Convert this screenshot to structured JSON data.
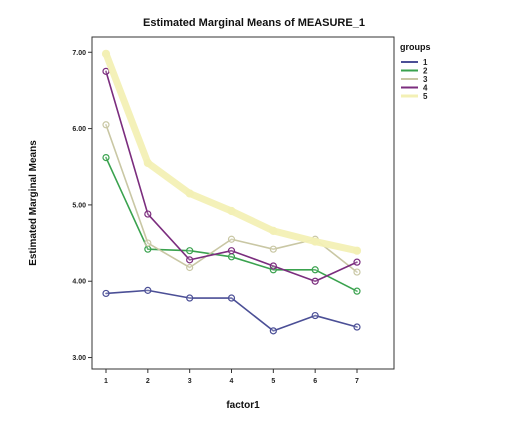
{
  "chart_data": {
    "type": "line",
    "title": "Estimated Marginal Means of MEASURE_1",
    "xlabel": "factor1",
    "ylabel": "Estimated Marginal Means",
    "categories": [
      "1",
      "2",
      "3",
      "4",
      "5",
      "6",
      "7"
    ],
    "ylim": [
      2.85,
      7.2
    ],
    "yticks": [
      {
        "value": 3.0,
        "label": "3.00"
      },
      {
        "value": 4.0,
        "label": "4.00"
      },
      {
        "value": 5.0,
        "label": "5.00"
      },
      {
        "value": 6.0,
        "label": "6.00"
      },
      {
        "value": 7.0,
        "label": "7.00"
      }
    ],
    "grid": false,
    "legend": {
      "title": "groups",
      "position": "right"
    },
    "series": [
      {
        "name": "1",
        "color": "#4b4f96",
        "values": [
          3.84,
          3.88,
          3.78,
          3.78,
          3.35,
          3.55,
          3.4
        ]
      },
      {
        "name": "2",
        "color": "#3aa24e",
        "values": [
          5.62,
          4.42,
          4.4,
          4.32,
          4.15,
          4.15,
          3.87
        ]
      },
      {
        "name": "3",
        "color": "#c9c7a4",
        "values": [
          6.05,
          4.5,
          4.18,
          4.55,
          4.42,
          4.55,
          4.12
        ]
      },
      {
        "name": "4",
        "color": "#7b2d7e",
        "values": [
          6.75,
          4.88,
          4.28,
          4.4,
          4.2,
          4.0,
          4.25
        ]
      },
      {
        "name": "5",
        "color": "#f3f0b5",
        "values": [
          6.98,
          5.55,
          5.15,
          4.92,
          4.66,
          4.52,
          4.4
        ]
      }
    ]
  }
}
